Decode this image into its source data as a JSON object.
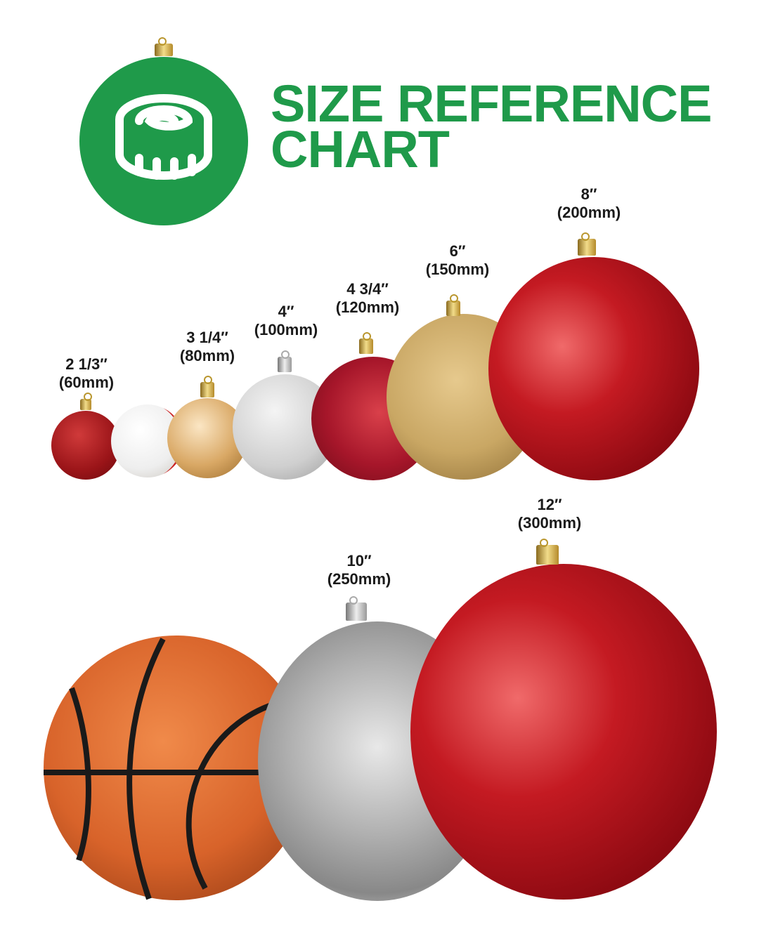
{
  "header": {
    "title_line1": "SIZE REFERENCE",
    "title_line2": "CHART",
    "brand_color": "#1f9a4a",
    "logo_icon": "measuring-tape-icon"
  },
  "sizes": [
    {
      "inch": "2 1/3″",
      "mm": "(60mm)"
    },
    {
      "inch": "3 1/4″",
      "mm": "(80mm)"
    },
    {
      "inch": "4″",
      "mm": "(100mm)"
    },
    {
      "inch": "4 3/4″",
      "mm": "(120mm)"
    },
    {
      "inch": "6″",
      "mm": "(150mm)"
    },
    {
      "inch": "8″",
      "mm": "(200mm)"
    },
    {
      "inch": "10″",
      "mm": "(250mm)"
    },
    {
      "inch": "12″",
      "mm": "(300mm)"
    }
  ],
  "comparison_objects": [
    "baseball",
    "basketball"
  ]
}
